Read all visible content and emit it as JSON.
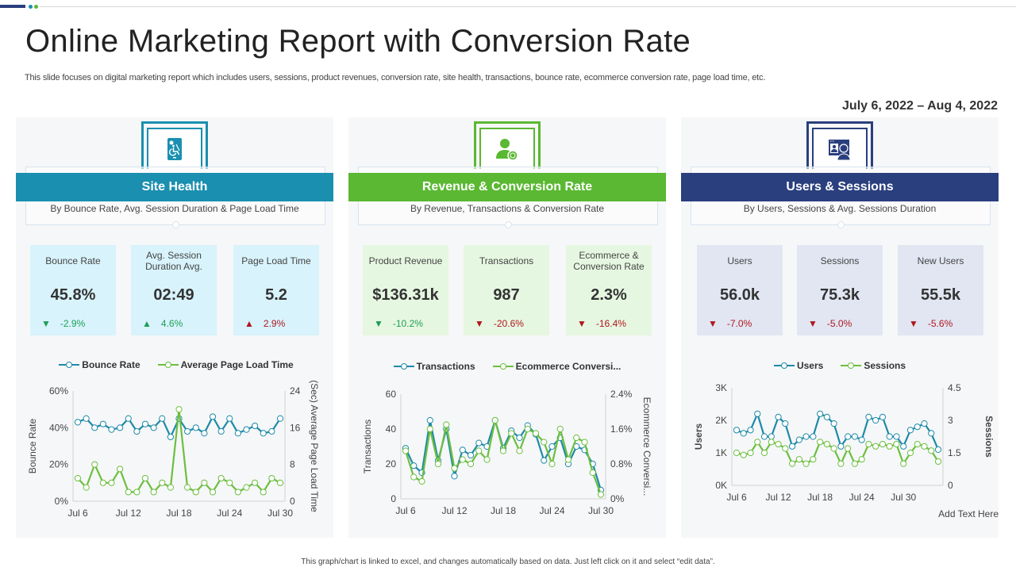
{
  "header": {
    "title": "Online Marketing Report with Conversion Rate",
    "subtitle": "This slide focuses on digital marketing report which includes users, sessions, product revenues, conversion rate, site health, transactions, bounce rate, ecommerce conversion rate, page load time, etc.",
    "date_range": "July 6, 2022 – Aug 4, 2022"
  },
  "colors": {
    "site_health": "#1a8fb0",
    "revenue": "#5ab832",
    "users": "#2a3f7e",
    "positive": "#1e9e55",
    "negative": "#b0171f",
    "series_blue": "#1e8aa8",
    "series_green": "#6cbf3f"
  },
  "panels": [
    {
      "id": "site-health",
      "icon": "mobile-accessibility-icon",
      "title": "Site Health",
      "description": "By Bounce Rate, Avg.  Session Duration & Page Load Time",
      "kpi_bg": "#d8f3fb",
      "kpis": [
        {
          "label": "Bounce Rate",
          "value": "45.8%",
          "delta": "-2.9%",
          "direction": "down",
          "sentiment": "good"
        },
        {
          "label": "Avg.  Session Duration Avg.",
          "value": "02:49",
          "delta": "4.6%",
          "direction": "up",
          "sentiment": "good"
        },
        {
          "label": "Page Load Time",
          "value": "5.2",
          "delta": "2.9%",
          "direction": "up",
          "sentiment": "bad"
        }
      ]
    },
    {
      "id": "revenue",
      "icon": "user-conversion-icon",
      "title": "Revenue & Conversion Rate",
      "description": "By Revenue, Transactions & Conversion Rate",
      "kpi_bg": "#e6f7e1",
      "kpis": [
        {
          "label": "Product Revenue",
          "value": "$136.31k",
          "delta": "-10.2%",
          "direction": "down",
          "sentiment": "good"
        },
        {
          "label": "Transactions",
          "value": "987",
          "delta": "-20.6%",
          "direction": "down",
          "sentiment": "bad"
        },
        {
          "label": "Ecommerce & Conversion Rate",
          "value": "2.3%",
          "delta": "-16.4%",
          "direction": "down",
          "sentiment": "bad"
        }
      ]
    },
    {
      "id": "users",
      "icon": "user-profile-window-icon",
      "title": "Users & Sessions",
      "description": "By Users, Sessions & Avg.  Sessions Duration",
      "kpi_bg": "#e1e6f2",
      "kpis": [
        {
          "label": "Users",
          "value": "56.0k",
          "delta": "-7.0%",
          "direction": "down",
          "sentiment": "bad"
        },
        {
          "label": "Sessions",
          "value": "75.3k",
          "delta": "-5.0%",
          "direction": "down",
          "sentiment": "bad"
        },
        {
          "label": "New Users",
          "value": "55.5k",
          "delta": "-5.6%",
          "direction": "down",
          "sentiment": "bad"
        }
      ]
    }
  ],
  "chart_data": [
    {
      "type": "line",
      "title": "",
      "x": [
        "Jul 6",
        "Jul 7",
        "Jul 8",
        "Jul 9",
        "Jul 10",
        "Jul 11",
        "Jul 12",
        "Jul 13",
        "Jul 14",
        "Jul 15",
        "Jul 16",
        "Jul 17",
        "Jul 18",
        "Jul 19",
        "Jul 20",
        "Jul 21",
        "Jul 22",
        "Jul 23",
        "Jul 24",
        "Jul 25",
        "Jul 26",
        "Jul 27",
        "Jul 28",
        "Jul 29",
        "Jul 30"
      ],
      "xticks": [
        "Jul 6",
        "Jul 12",
        "Jul 18",
        "Jul 24",
        "Jul 30"
      ],
      "xlabel": "",
      "ylabel": "Bounce Rate",
      "y2label": "(Sec) Average Page Load Time",
      "ylim": [
        0,
        60
      ],
      "yticks": [
        "0%",
        "20%",
        "40%",
        "60%"
      ],
      "y2lim": [
        0,
        24
      ],
      "y2ticks": [
        "0",
        "8",
        "16",
        "24"
      ],
      "legend": "top",
      "grid": false,
      "series": [
        {
          "name": "Bounce Rate",
          "axis": "left",
          "color": "#1e8aa8",
          "values": [
            43,
            45,
            40,
            42,
            39,
            40,
            45,
            38,
            42,
            40,
            45,
            35,
            45,
            38,
            40,
            37,
            46,
            38,
            45,
            37,
            39,
            41,
            37,
            38,
            45
          ]
        },
        {
          "name": "Average Page Load Time",
          "axis": "right",
          "color": "#6cbf3f",
          "values": [
            5,
            3,
            8,
            4,
            4,
            7,
            2,
            2,
            5,
            2,
            4,
            3,
            20,
            3,
            2,
            4,
            2,
            5,
            4,
            2,
            3,
            4,
            2,
            5,
            4
          ]
        }
      ]
    },
    {
      "type": "line",
      "title": "",
      "x": [
        "Jul 6",
        "Jul 7",
        "Jul 8",
        "Jul 9",
        "Jul 10",
        "Jul 11",
        "Jul 12",
        "Jul 13",
        "Jul 14",
        "Jul 15",
        "Jul 16",
        "Jul 17",
        "Jul 18",
        "Jul 19",
        "Jul 20",
        "Jul 21",
        "Jul 22",
        "Jul 23",
        "Jul 24",
        "Jul 25",
        "Jul 26",
        "Jul 27",
        "Jul 28",
        "Jul 29",
        "Jul 30"
      ],
      "xticks": [
        "Jul 6",
        "Jul 12",
        "Jul 18",
        "Jul 24",
        "Jul 30"
      ],
      "xlabel": "",
      "ylabel": "Transactions",
      "y2label": "Ecommerce Conversi...",
      "ylim": [
        0,
        60
      ],
      "yticks": [
        "0",
        "20",
        "40",
        "60"
      ],
      "y2lim": [
        0,
        2.4
      ],
      "y2ticks": [
        "0%",
        "0.8%",
        "1.6%",
        "2.4%"
      ],
      "legend": "top",
      "grid": false,
      "series": [
        {
          "name": "Transactions",
          "axis": "left",
          "color": "#1e8aa8",
          "values": [
            29,
            19,
            15,
            45,
            22,
            40,
            13,
            28,
            25,
            32,
            30,
            45,
            29,
            39,
            35,
            42,
            37,
            22,
            30,
            35,
            20,
            30,
            28,
            20,
            5
          ]
        },
        {
          "name": "Ecommerce Conversi...",
          "axis": "right",
          "color": "#6cbf3f",
          "values": [
            1.1,
            0.5,
            0.4,
            1.6,
            0.8,
            1.7,
            0.7,
            0.9,
            0.8,
            1.1,
            0.9,
            1.8,
            1.1,
            1.5,
            1.1,
            1.6,
            1.5,
            1.3,
            0.8,
            1.6,
            0.9,
            1.4,
            1.3,
            0.6,
            0.1
          ]
        }
      ]
    },
    {
      "type": "line",
      "title": "",
      "x": [
        "Jul 6",
        "Jul 7",
        "Jul 8",
        "Jul 9",
        "Jul 10",
        "Jul 11",
        "Jul 12",
        "Jul 13",
        "Jul 14",
        "Jul 15",
        "Jul 16",
        "Jul 17",
        "Jul 18",
        "Jul 19",
        "Jul 20",
        "Jul 21",
        "Jul 22",
        "Jul 23",
        "Jul 24",
        "Jul 25",
        "Jul 26",
        "Jul 27",
        "Jul 28",
        "Jul 29",
        "Jul 30",
        "Jul 31",
        "Aug 1",
        "Aug 2",
        "Aug 3",
        "Aug 4"
      ],
      "xticks": [
        "Jul 6",
        "Jul 12",
        "Jul 18",
        "Jul 24",
        "Jul 30"
      ],
      "xlabel": "",
      "ylabel": "Users",
      "y2label": "Sessions",
      "ylim": [
        0,
        3
      ],
      "yticks": [
        "0K",
        "1K",
        "2K",
        "3K"
      ],
      "y2lim": [
        0,
        4.5
      ],
      "y2ticks": [
        "0",
        "1.5",
        "3",
        "4.5"
      ],
      "legend": "top",
      "grid": false,
      "series": [
        {
          "name": "Users",
          "axis": "left",
          "color": "#1e8aa8",
          "values": [
            1.7,
            1.6,
            1.7,
            2.2,
            1.5,
            1.5,
            2.1,
            1.9,
            1.2,
            1.4,
            1.5,
            1.5,
            2.2,
            2.1,
            1.9,
            1.2,
            1.5,
            1.5,
            1.4,
            2.1,
            2.0,
            2.1,
            1.5,
            1.5,
            1.2,
            1.7,
            1.8,
            1.9,
            1.6,
            1.1
          ]
        },
        {
          "name": "Sessions",
          "axis": "right",
          "color": "#6cbf3f",
          "values": [
            1.5,
            1.4,
            1.5,
            2.0,
            1.5,
            2.0,
            1.9,
            1.7,
            1.0,
            1.2,
            1.0,
            1.2,
            2.0,
            1.9,
            1.7,
            1.0,
            1.7,
            1.0,
            1.2,
            1.9,
            1.8,
            1.9,
            1.8,
            1.9,
            1.0,
            1.5,
            1.9,
            1.8,
            1.6,
            1.1
          ]
        }
      ]
    }
  ],
  "footnote": {
    "add_text": "Add Text Here",
    "text": "This graph/chart is linked to excel, and changes automatically based on data. Just left click on it and select “edit data”."
  }
}
